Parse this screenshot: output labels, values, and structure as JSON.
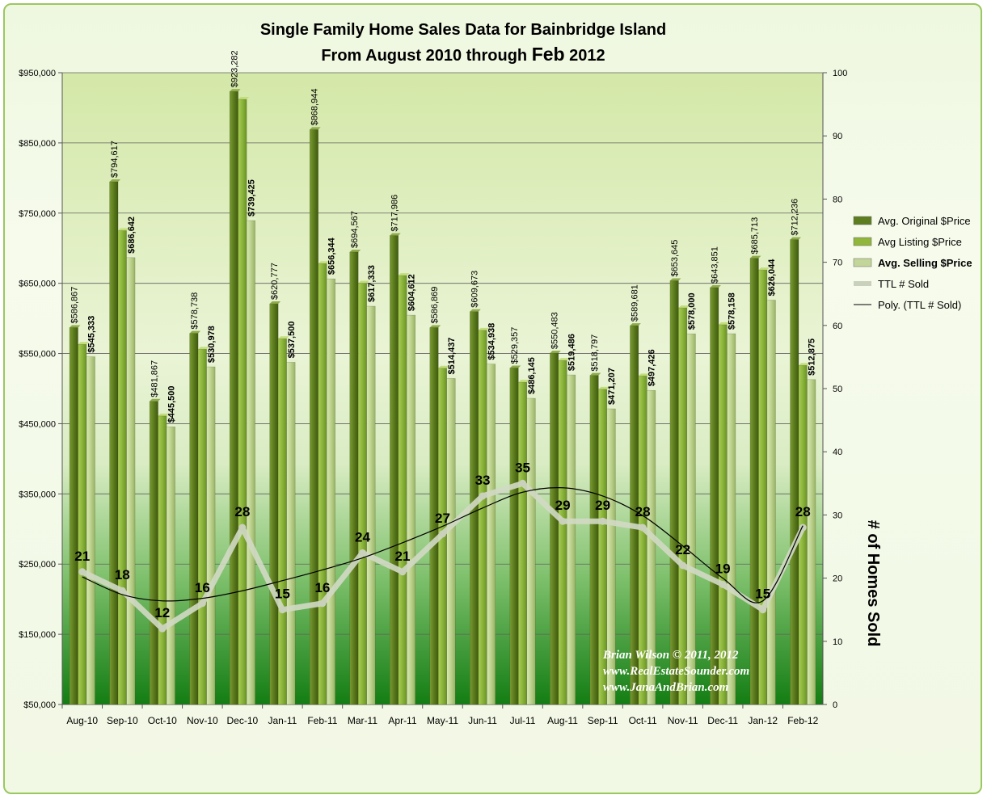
{
  "title_line1": "Single Family Home Sales Data for Bainbridge Island",
  "title_line2_prefix": "From August 2010 through ",
  "title_line2_month": "Feb",
  "title_line2_year": " 2012",
  "right_axis_label": "# of Homes Sold",
  "credit": {
    "line1": "Brian Wilson  © 2011, 2012",
    "line2": "www.RealEstateSounder.com",
    "line3": "www.JanaAndBrian.com"
  },
  "legend": [
    {
      "label": "Avg. Original $Price",
      "bold": false
    },
    {
      "label": "Avg Listing $Price",
      "bold": false
    },
    {
      "label": "Avg. Selling $Price",
      "bold": true
    },
    {
      "label": "TTL # Sold",
      "bold": false
    },
    {
      "label": "Poly. (TTL # Sold)",
      "bold": false
    }
  ],
  "colors": {
    "original": "#5e7d1e",
    "listing": "#90b63c",
    "selling": "#c3d69a",
    "sold_line": "#d2d9c4",
    "trend_line": "#000000",
    "plot_top": "#e6f2cc",
    "plot_bottom": "#147a14"
  },
  "chart_data": {
    "type": "bar",
    "categories": [
      "Aug-10",
      "Sep-10",
      "Oct-10",
      "Nov-10",
      "Dec-10",
      "Jan-11",
      "Feb-11",
      "Mar-11",
      "Apr-11",
      "May-11",
      "Jun-11",
      "Jul-11",
      "Aug-11",
      "Sep-11",
      "Oct-11",
      "Nov-11",
      "Dec-11",
      "Jan-12",
      "Feb-12"
    ],
    "y_left_ticks": [
      "$50,000",
      "$150,000",
      "$250,000",
      "$350,000",
      "$450,000",
      "$550,000",
      "$650,000",
      "$750,000",
      "$850,000",
      "$950,000"
    ],
    "y_right_ticks": [
      "0",
      "10",
      "20",
      "30",
      "40",
      "50",
      "60",
      "70",
      "80",
      "90",
      "100"
    ],
    "ylim_left": [
      50000,
      950000
    ],
    "ylim_right": [
      0,
      100
    ],
    "series": [
      {
        "name": "Avg. Original $Price",
        "values": [
          586867,
          794617,
          481867,
          578738,
          923282,
          620777,
          868944,
          694567,
          717986,
          586869,
          609673,
          529357,
          550483,
          518797,
          589681,
          653645,
          643851,
          685713,
          712236
        ],
        "labels": [
          "$586,867",
          "$794,617",
          "$481,867",
          "$578,738",
          "$923,282",
          "$620,777",
          "$868,944",
          "$694,567",
          "$717,986",
          "$586,869",
          "$609,673",
          "$529,357",
          "$550,483",
          "$518,797",
          "$589,681",
          "$653,645",
          "$643,851",
          "$685,713",
          "$712,236"
        ]
      },
      {
        "name": "Avg Listing $Price",
        "values": [
          563000,
          725000,
          461000,
          556000,
          912000,
          571000,
          678000,
          650000,
          661000,
          529000,
          583000,
          509000,
          540000,
          499000,
          518000,
          615000,
          591000,
          669000,
          533000
        ]
      },
      {
        "name": "Avg. Selling $Price",
        "values": [
          545333,
          686642,
          445500,
          530978,
          739425,
          537500,
          656344,
          617333,
          604612,
          514437,
          534938,
          486145,
          519486,
          471207,
          497426,
          578000,
          578158,
          626044,
          512875
        ],
        "labels": [
          "$545,333",
          "$686,642",
          "$445,500",
          "$530,978",
          "$739,425",
          "$537,500",
          "$656,344",
          "$617,333",
          "$604,612",
          "$514,437",
          "$534,938",
          "$486,145",
          "$519,486",
          "$471,207",
          "$497,426",
          "$578,000",
          "$578,158",
          "$626,044",
          "$512,875"
        ]
      },
      {
        "name": "TTL # Sold",
        "type": "line",
        "axis": "right",
        "values": [
          21,
          18,
          12,
          16,
          28,
          15,
          16,
          24,
          21,
          27,
          33,
          35,
          29,
          29,
          28,
          22,
          19,
          15,
          28
        ]
      },
      {
        "name": "Poly. (TTL # Sold)",
        "type": "line",
        "axis": "right",
        "values": [
          20.2,
          17.4,
          16.4,
          16.8,
          18.0,
          19.6,
          21.3,
          23.2,
          25.6,
          28.2,
          31.1,
          33.6,
          34.3,
          33.0,
          29.9,
          25.1,
          20.0,
          16.4,
          28.3
        ]
      }
    ]
  }
}
